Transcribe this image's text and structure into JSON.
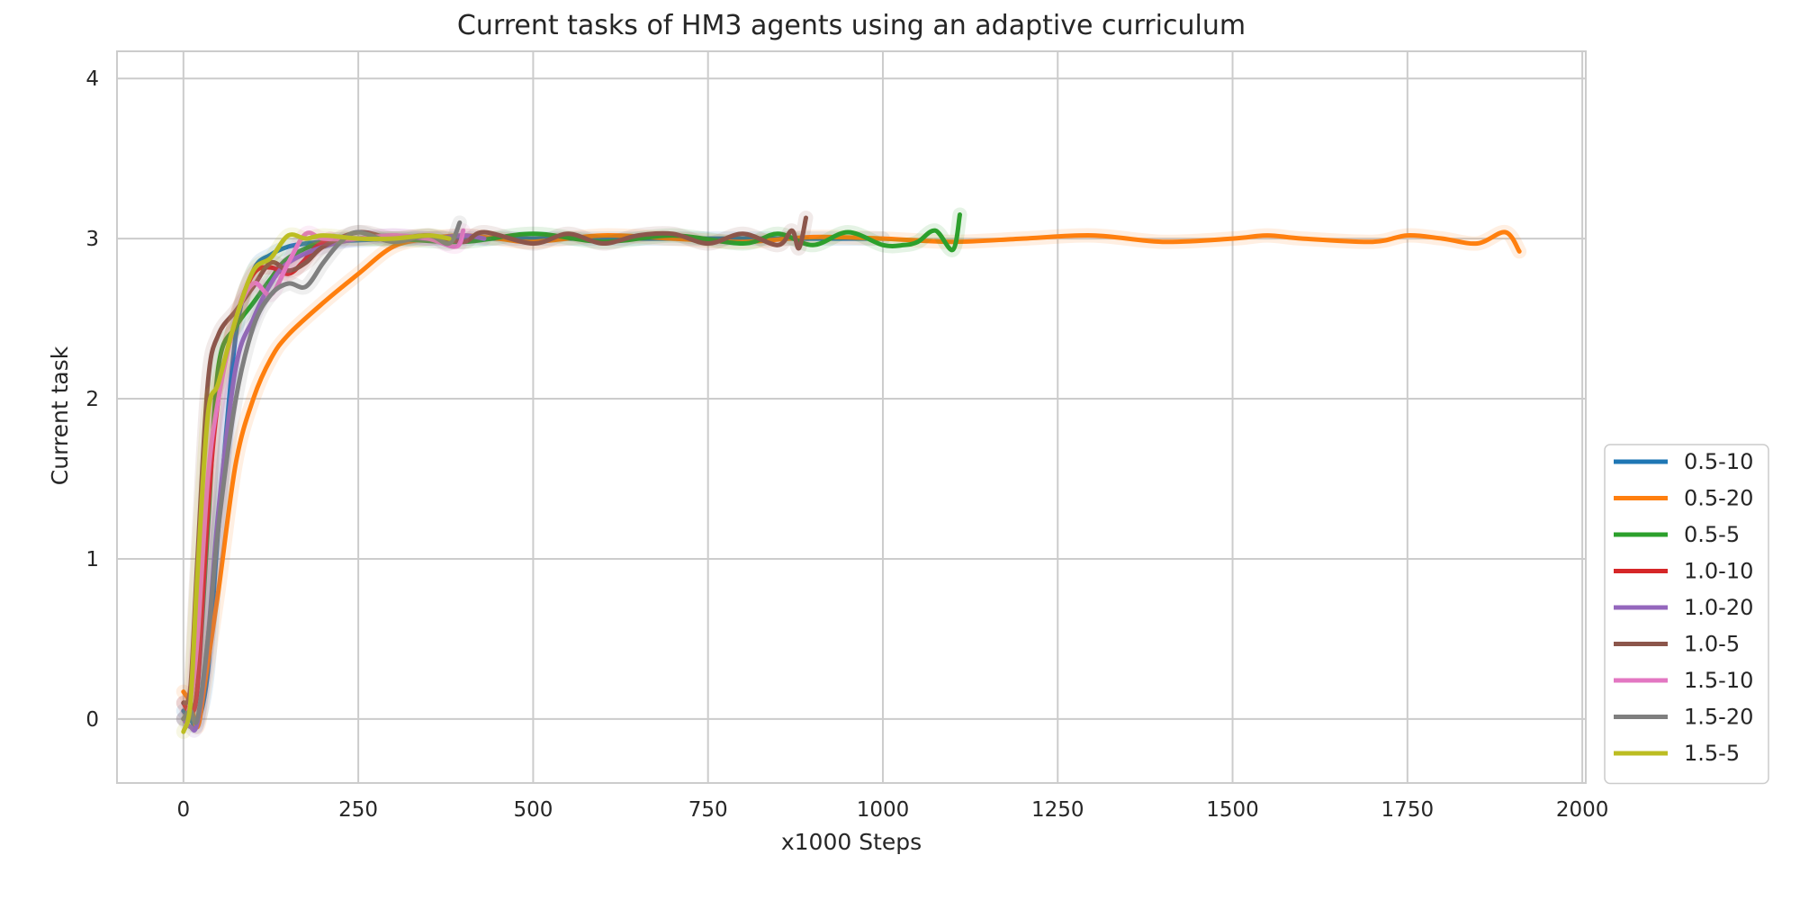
{
  "chart_data": {
    "type": "line",
    "title": "Current tasks of HM3 agents using an adaptive curriculum",
    "xlabel": "x1000 Steps",
    "ylabel": "Current task",
    "xlim": [
      -95,
      2005
    ],
    "ylim": [
      -0.4,
      4.17
    ],
    "xticks": [
      0,
      250,
      500,
      750,
      1000,
      1250,
      1500,
      1750,
      2000
    ],
    "yticks": [
      0,
      1,
      2,
      3,
      4
    ],
    "grid": true,
    "legend_position": "lower-right",
    "series": [
      {
        "name": "0.5-10",
        "color": "#1f77b4",
        "x": [
          0,
          10,
          20,
          35,
          50,
          75,
          100,
          125,
          150,
          175,
          200,
          250,
          300,
          350,
          400,
          500,
          600,
          700,
          800,
          900,
          1000
        ],
        "y": [
          0.05,
          0.0,
          -0.03,
          0.3,
          1.2,
          2.4,
          2.8,
          2.9,
          2.95,
          2.97,
          2.98,
          2.99,
          3.0,
          3.0,
          3.0,
          3.0,
          3.0,
          3.0,
          3.0,
          3.0,
          3.0
        ]
      },
      {
        "name": "0.5-20",
        "color": "#ff7f0e",
        "x": [
          0,
          10,
          20,
          30,
          50,
          75,
          100,
          125,
          150,
          200,
          250,
          300,
          350,
          400,
          450,
          500,
          600,
          700,
          800,
          900,
          1000,
          1100,
          1200,
          1300,
          1400,
          1500,
          1550,
          1600,
          1700,
          1750,
          1800,
          1850,
          1890,
          1910
        ],
        "y": [
          0.17,
          0.1,
          -0.05,
          0.2,
          0.8,
          1.6,
          2.0,
          2.25,
          2.4,
          2.6,
          2.78,
          2.95,
          3.0,
          3.02,
          3.0,
          2.98,
          3.02,
          3.0,
          2.98,
          3.01,
          3.0,
          2.98,
          3.0,
          3.02,
          2.98,
          3.0,
          3.02,
          3.0,
          2.98,
          3.02,
          3.0,
          2.97,
          3.04,
          2.92
        ]
      },
      {
        "name": "0.5-5",
        "color": "#2ca02c",
        "x": [
          0,
          10,
          20,
          35,
          50,
          75,
          100,
          125,
          150,
          200,
          250,
          300,
          400,
          500,
          600,
          700,
          800,
          850,
          900,
          950,
          1000,
          1030,
          1050,
          1075,
          1100,
          1110
        ],
        "y": [
          0.0,
          0.05,
          0.2,
          1.2,
          2.2,
          2.45,
          2.6,
          2.75,
          2.88,
          2.98,
          3.0,
          3.0,
          2.98,
          3.03,
          2.98,
          3.02,
          2.97,
          3.03,
          2.96,
          3.04,
          2.96,
          2.96,
          2.98,
          3.05,
          2.93,
          3.15
        ]
      },
      {
        "name": "1.0-10",
        "color": "#d62728",
        "x": [
          0,
          10,
          20,
          35,
          50,
          75,
          100,
          125,
          150,
          170,
          190,
          210
        ],
        "y": [
          0.1,
          0.05,
          0.2,
          1.3,
          2.0,
          2.5,
          2.78,
          2.82,
          2.78,
          2.85,
          2.95,
          3.0
        ]
      },
      {
        "name": "1.0-20",
        "color": "#9467bd",
        "x": [
          0,
          10,
          20,
          35,
          50,
          75,
          100,
          125,
          150,
          200,
          250,
          300,
          350,
          400,
          430
        ],
        "y": [
          0.0,
          -0.05,
          -0.02,
          0.5,
          1.3,
          2.2,
          2.5,
          2.72,
          2.85,
          2.95,
          3.0,
          3.02,
          3.0,
          3.02,
          3.0
        ]
      },
      {
        "name": "1.0-5",
        "color": "#8c564b",
        "x": [
          0,
          10,
          20,
          35,
          50,
          75,
          100,
          125,
          150,
          175,
          200,
          250,
          300,
          350,
          400,
          430,
          500,
          550,
          600,
          650,
          700,
          750,
          800,
          850,
          870,
          880,
          890
        ],
        "y": [
          0.1,
          0.2,
          1.0,
          2.1,
          2.4,
          2.55,
          2.7,
          2.85,
          2.8,
          2.85,
          2.95,
          3.04,
          3.0,
          3.02,
          2.98,
          3.04,
          2.97,
          3.03,
          2.97,
          3.02,
          3.03,
          2.97,
          3.03,
          2.96,
          3.05,
          2.94,
          3.13
        ]
      },
      {
        "name": "1.5-10",
        "color": "#e377c2",
        "x": [
          0,
          10,
          20,
          35,
          50,
          75,
          100,
          125,
          150,
          175,
          200,
          250,
          300,
          350,
          390,
          400
        ],
        "y": [
          0.0,
          0.1,
          0.5,
          1.5,
          2.0,
          2.5,
          2.72,
          2.65,
          2.85,
          3.03,
          3.0,
          3.0,
          3.02,
          3.0,
          2.95,
          3.05
        ]
      },
      {
        "name": "1.5-20",
        "color": "#7f7f7f",
        "x": [
          0,
          10,
          20,
          35,
          50,
          75,
          100,
          125,
          150,
          175,
          200,
          225,
          250,
          300,
          350,
          380,
          395
        ],
        "y": [
          0.0,
          0.05,
          0.0,
          0.5,
          1.2,
          2.0,
          2.45,
          2.65,
          2.72,
          2.7,
          2.85,
          2.98,
          3.04,
          2.98,
          3.02,
          2.97,
          3.1
        ]
      },
      {
        "name": "1.5-5",
        "color": "#bcbd22",
        "x": [
          0,
          10,
          20,
          35,
          50,
          75,
          100,
          125,
          150,
          175,
          200,
          250,
          300,
          350,
          380
        ],
        "y": [
          -0.08,
          0.1,
          0.9,
          1.9,
          2.1,
          2.5,
          2.8,
          2.88,
          3.02,
          3.0,
          3.02,
          3.0,
          3.0,
          3.02,
          3.0
        ]
      }
    ]
  }
}
